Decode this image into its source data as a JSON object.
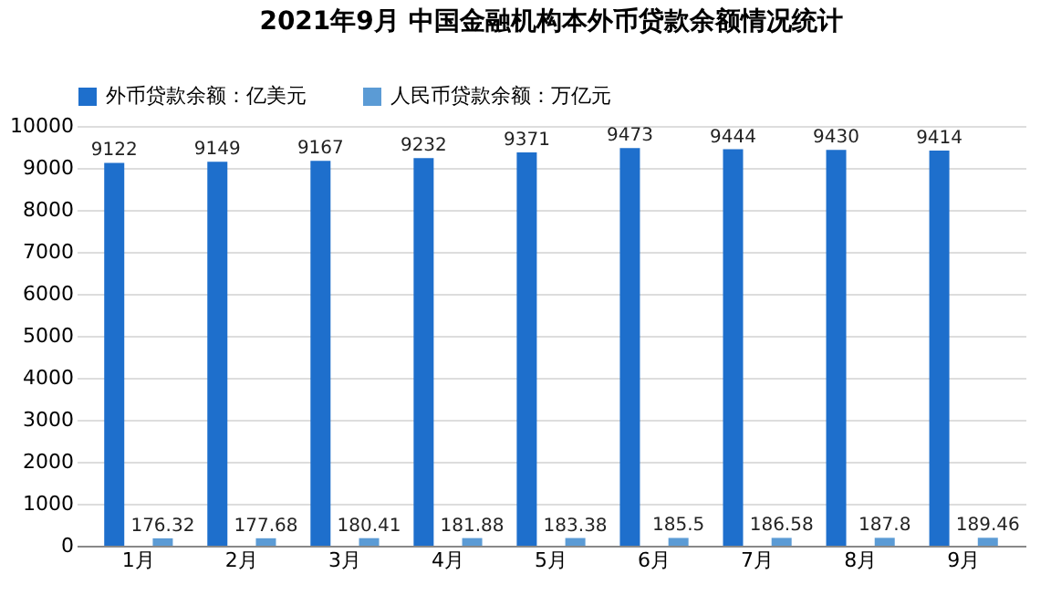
{
  "chart_data": {
    "type": "bar",
    "title": "2021年9月 中国金融机构本外币贷款余额情况统计",
    "categories": [
      "1月",
      "2月",
      "3月",
      "4月",
      "5月",
      "6月",
      "7月",
      "8月",
      "9月"
    ],
    "series": [
      {
        "name": "外币贷款余额：亿美元",
        "color": "#1e6fcc",
        "values": [
          9122,
          9149,
          9167,
          9232,
          9371,
          9473,
          9444,
          9430,
          9414
        ]
      },
      {
        "name": "人民币贷款余额：万亿元",
        "color": "#5b9bd5",
        "values": [
          176.32,
          177.68,
          180.41,
          181.88,
          183.38,
          185.5,
          186.58,
          187.8,
          189.46
        ]
      }
    ],
    "ylim": [
      0,
      10000
    ],
    "yticks": [
      0,
      1000,
      2000,
      3000,
      4000,
      5000,
      6000,
      7000,
      8000,
      9000,
      10000
    ],
    "grid": "y",
    "legend": "top left",
    "data_labels": true
  }
}
